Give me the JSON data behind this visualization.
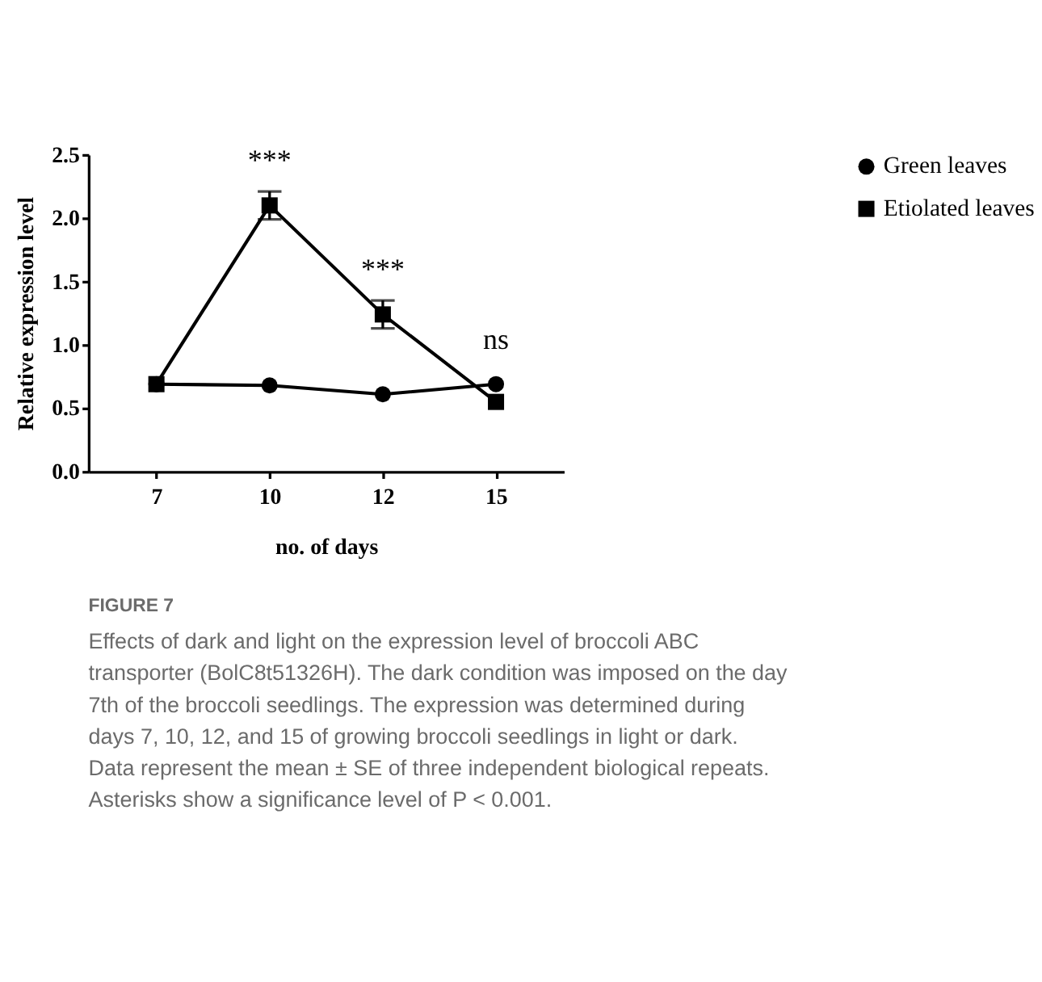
{
  "chart_data": {
    "type": "line",
    "xlabel": "no. of days",
    "ylabel": "Relative expression level",
    "categories": [
      "7",
      "10",
      "12",
      "15"
    ],
    "series": [
      {
        "name": "Green leaves",
        "color": "#000000",
        "marker": "circle",
        "values": [
          0.69,
          0.68,
          0.61,
          0.69
        ]
      },
      {
        "name": "Etiolated leaves",
        "color": "#000000",
        "marker": "square",
        "values": [
          0.69,
          2.1,
          1.24,
          0.55
        ],
        "errors": [
          null,
          0.11,
          0.11,
          null
        ]
      }
    ],
    "ylim": [
      0,
      2.5
    ],
    "yticks": [
      {
        "value": 0,
        "label": "0.0"
      },
      0.5,
      {
        "value": 1,
        "label": "1.0"
      },
      1.5,
      {
        "value": 2,
        "label": "2.0"
      },
      2.5
    ],
    "legend": "top right",
    "grid": false,
    "line_style": "solid",
    "annotations": [
      {
        "text": "***",
        "x": "10",
        "y": 2.1
      },
      {
        "text": "***",
        "x": "12",
        "y": 1.24
      },
      {
        "text": "ns",
        "x": "15",
        "y": 0.69
      },
      "FIGURE 7",
      "Effects of dark and light on the expression level of broccoli ABC transporter (BolC8t51326H). The dark condition was imposed on the day 7th of the broccoli seedlings. The expression was determined during days 7, 10, 12, and 15 of growing broccoli seedlings in light or dark. Data represent the mean ± SE of three independent biological repeats. Asterisks show a significance level of P < 0.001."
    ]
  }
}
